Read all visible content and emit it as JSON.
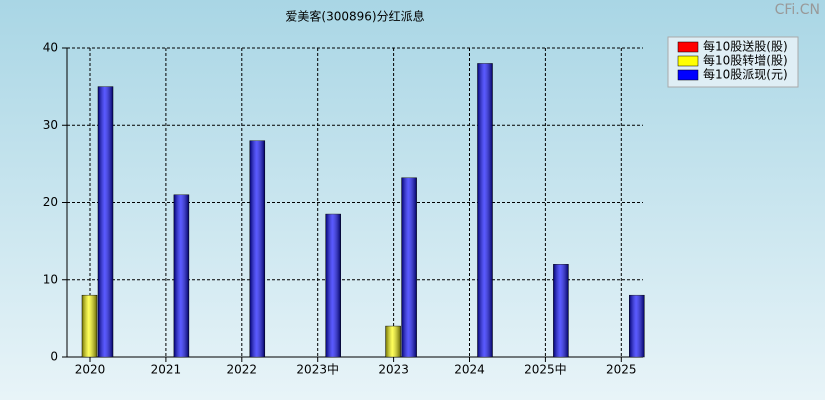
{
  "chart_data": {
    "type": "bar",
    "title": "爱美客(300896)分红派息",
    "watermark": "CFi.CN",
    "categories": [
      "2020",
      "2021",
      "2022",
      "2023中",
      "2023",
      "2024",
      "2025中",
      "2025"
    ],
    "series": [
      {
        "name": "每10股送股(股)",
        "color": "#ff0000",
        "values": [
          null,
          null,
          null,
          null,
          null,
          null,
          null,
          null
        ]
      },
      {
        "name": "每10股转增(股)",
        "color": "#ffff00",
        "values": [
          8,
          null,
          null,
          null,
          4,
          null,
          null,
          null
        ]
      },
      {
        "name": "每10股派现(元)",
        "color": "#0000ff",
        "values": [
          35,
          21,
          28,
          18.5,
          23.2,
          38,
          12,
          8
        ]
      }
    ],
    "ylim": [
      0,
      40
    ],
    "yticks": [
      0,
      10,
      20,
      30,
      40
    ],
    "grid": true,
    "legend": "top-right"
  }
}
